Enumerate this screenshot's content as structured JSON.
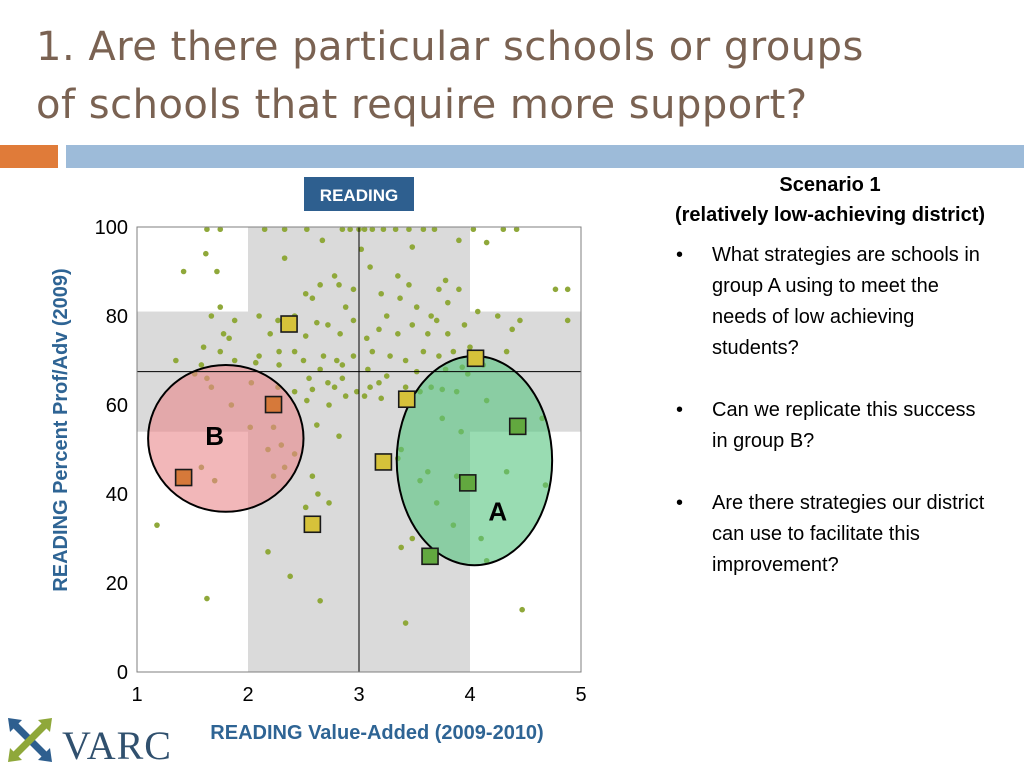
{
  "slide": {
    "title_line1": "1. Are there particular schools or groups",
    "title_line2": "of schools that require more support?"
  },
  "colors": {
    "title": "#7a6252",
    "accent_orange": "#e07b39",
    "accent_blue": "#9dbbd9",
    "axis_label_blue": "#2e6494",
    "badge_bg": "#2e5f8f",
    "dot": "#8fa83a",
    "group_a_fill": "#55c47f",
    "group_b_fill": "#e9878b",
    "marker_yellow": "#d6c23a",
    "marker_orange": "#d6793a",
    "marker_green": "#62a83f",
    "shade": "#dadada"
  },
  "scenario": {
    "line1": "Scenario 1",
    "line2": "(relatively low-achieving district)"
  },
  "bullets": [
    "What strategies are schools in group A using to meet the needs of low achieving students?",
    "Can we replicate this success in group B?",
    "Are there strategies our district can use to facilitate this improvement?"
  ],
  "logo": {
    "text": "VARC",
    "icon": "varc-cross-arrows-icon"
  },
  "chart_data": {
    "type": "scatter",
    "badge": "READING",
    "xlabel": "READING Value-Added (2009-2010)",
    "ylabel": "READING Percent Prof/Adv (2009)",
    "xlim": [
      1,
      5
    ],
    "ylim": [
      0,
      100
    ],
    "xticks": [
      1,
      2,
      3,
      4,
      5
    ],
    "yticks": [
      0,
      20,
      40,
      60,
      80,
      100
    ],
    "grid": false,
    "reference_lines": {
      "x": 3,
      "y": 67.5
    },
    "shaded_bands": {
      "x_range": [
        2,
        4
      ],
      "y_range": [
        54,
        81
      ]
    },
    "circles": [
      {
        "label": "A",
        "cx": 4.04,
        "cy": 47.5,
        "rx": 0.7,
        "ry": 23.5
      },
      {
        "label": "B",
        "cx": 1.8,
        "cy": 52.5,
        "rx": 0.7,
        "ry": 16.5
      }
    ],
    "highlighted_schools": [
      {
        "x": 2.37,
        "y": 78.2,
        "group": "none"
      },
      {
        "x": 4.05,
        "y": 70.5,
        "group": "none"
      },
      {
        "x": 3.43,
        "y": 61.3,
        "group": "none"
      },
      {
        "x": 3.22,
        "y": 47.2,
        "group": "none"
      },
      {
        "x": 2.58,
        "y": 33.2,
        "group": "none"
      },
      {
        "x": 2.23,
        "y": 60.1,
        "group": "B"
      },
      {
        "x": 1.42,
        "y": 43.7,
        "group": "B"
      },
      {
        "x": 3.98,
        "y": 42.5,
        "group": "A"
      },
      {
        "x": 4.43,
        "y": 55.2,
        "group": "A"
      },
      {
        "x": 3.64,
        "y": 26.0,
        "group": "A"
      }
    ],
    "schools": [
      [
        1.63,
        99.5
      ],
      [
        1.75,
        99.5
      ],
      [
        2.15,
        99.5
      ],
      [
        2.33,
        99.5
      ],
      [
        2.53,
        99.5
      ],
      [
        2.85,
        99.5
      ],
      [
        2.92,
        99.5
      ],
      [
        3.0,
        99.5
      ],
      [
        3.05,
        99.5
      ],
      [
        3.12,
        99.5
      ],
      [
        3.22,
        99.5
      ],
      [
        3.33,
        99.5
      ],
      [
        3.45,
        99.5
      ],
      [
        3.58,
        99.5
      ],
      [
        3.68,
        99.5
      ],
      [
        4.03,
        99.5
      ],
      [
        4.3,
        99.5
      ],
      [
        4.42,
        99.5
      ],
      [
        2.33,
        93
      ],
      [
        3.02,
        95
      ],
      [
        3.48,
        95.5
      ],
      [
        4.15,
        96.5
      ],
      [
        3.9,
        97
      ],
      [
        1.62,
        94
      ],
      [
        2.67,
        97
      ],
      [
        1.42,
        90
      ],
      [
        1.72,
        90
      ],
      [
        3.1,
        91
      ],
      [
        3.35,
        89
      ],
      [
        3.78,
        88
      ],
      [
        3.45,
        87
      ],
      [
        2.78,
        89
      ],
      [
        2.52,
        85
      ],
      [
        2.82,
        87
      ],
      [
        2.65,
        87
      ],
      [
        2.95,
        86
      ],
      [
        3.2,
        85
      ],
      [
        4.88,
        86
      ],
      [
        4.77,
        86
      ],
      [
        3.72,
        86
      ],
      [
        3.9,
        86
      ],
      [
        3.8,
        83
      ],
      [
        3.52,
        82
      ],
      [
        2.58,
        84
      ],
      [
        2.88,
        82
      ],
      [
        3.37,
        84
      ],
      [
        4.07,
        81
      ],
      [
        4.25,
        80
      ],
      [
        4.45,
        79
      ],
      [
        4.88,
        79
      ],
      [
        3.65,
        80
      ],
      [
        3.95,
        78
      ],
      [
        2.42,
        80
      ],
      [
        2.62,
        78.5
      ],
      [
        2.72,
        78
      ],
      [
        2.95,
        79
      ],
      [
        3.18,
        77
      ],
      [
        3.48,
        78
      ],
      [
        3.7,
        79
      ],
      [
        3.25,
        80
      ],
      [
        1.67,
        80
      ],
      [
        1.75,
        82
      ],
      [
        1.88,
        79
      ],
      [
        2.27,
        79
      ],
      [
        2.1,
        80
      ],
      [
        1.78,
        76
      ],
      [
        1.83,
        75
      ],
      [
        2.2,
        76
      ],
      [
        2.52,
        75.5
      ],
      [
        2.83,
        76
      ],
      [
        3.07,
        75
      ],
      [
        3.35,
        76
      ],
      [
        3.62,
        76
      ],
      [
        3.8,
        76
      ],
      [
        4.38,
        77
      ],
      [
        4.0,
        73
      ],
      [
        1.6,
        73
      ],
      [
        1.75,
        72
      ],
      [
        2.1,
        71
      ],
      [
        2.28,
        72
      ],
      [
        2.42,
        72
      ],
      [
        2.68,
        71
      ],
      [
        2.8,
        70
      ],
      [
        2.95,
        71
      ],
      [
        3.12,
        72
      ],
      [
        3.28,
        71
      ],
      [
        3.42,
        70
      ],
      [
        3.58,
        72
      ],
      [
        3.72,
        71
      ],
      [
        3.85,
        72
      ],
      [
        4.33,
        72
      ],
      [
        4.12,
        69
      ],
      [
        3.93,
        68.5
      ],
      [
        1.35,
        70
      ],
      [
        1.58,
        69
      ],
      [
        1.88,
        70
      ],
      [
        2.07,
        69.5
      ],
      [
        2.28,
        69
      ],
      [
        2.5,
        70
      ],
      [
        2.65,
        68
      ],
      [
        2.85,
        69
      ],
      [
        3.08,
        68
      ],
      [
        3.52,
        67.5
      ],
      [
        3.78,
        68
      ],
      [
        2.55,
        66
      ],
      [
        2.72,
        65
      ],
      [
        2.85,
        66
      ],
      [
        3.18,
        65
      ],
      [
        3.25,
        66.5
      ],
      [
        3.98,
        67
      ],
      [
        1.52,
        67
      ],
      [
        1.63,
        66
      ],
      [
        2.03,
        65
      ],
      [
        2.27,
        64
      ],
      [
        2.42,
        63
      ],
      [
        2.58,
        63.5
      ],
      [
        2.78,
        64
      ],
      [
        2.98,
        63
      ],
      [
        3.1,
        64
      ],
      [
        3.42,
        64
      ],
      [
        3.55,
        63
      ],
      [
        3.65,
        64
      ],
      [
        3.75,
        63.5
      ],
      [
        3.88,
        63
      ],
      [
        2.88,
        62
      ],
      [
        3.05,
        62
      ],
      [
        3.2,
        61.5
      ],
      [
        2.73,
        60
      ],
      [
        4.15,
        61
      ],
      [
        1.85,
        60
      ],
      [
        1.67,
        64
      ],
      [
        2.23,
        55
      ],
      [
        2.3,
        51
      ],
      [
        2.02,
        55
      ],
      [
        2.18,
        50
      ],
      [
        2.42,
        49
      ],
      [
        2.33,
        46
      ],
      [
        2.23,
        44
      ],
      [
        2.58,
        44
      ],
      [
        1.58,
        46
      ],
      [
        1.7,
        43
      ],
      [
        2.63,
        40
      ],
      [
        2.73,
        38
      ],
      [
        2.52,
        37
      ],
      [
        2.53,
        61
      ],
      [
        3.75,
        57
      ],
      [
        3.92,
        54
      ],
      [
        4.65,
        57
      ],
      [
        3.38,
        50
      ],
      [
        3.35,
        48
      ],
      [
        3.62,
        45
      ],
      [
        3.88,
        44
      ],
      [
        4.33,
        45
      ],
      [
        3.55,
        43
      ],
      [
        4.68,
        42
      ],
      [
        3.7,
        38
      ],
      [
        3.48,
        30
      ],
      [
        3.85,
        33
      ],
      [
        4.1,
        30
      ],
      [
        3.38,
        28
      ],
      [
        2.18,
        27
      ],
      [
        4.15,
        25
      ],
      [
        2.38,
        21.5
      ],
      [
        1.18,
        33
      ],
      [
        1.63,
        16.5
      ],
      [
        2.65,
        16
      ],
      [
        3.42,
        11
      ],
      [
        4.47,
        14
      ],
      [
        2.62,
        55.5
      ],
      [
        2.82,
        53
      ]
    ]
  }
}
